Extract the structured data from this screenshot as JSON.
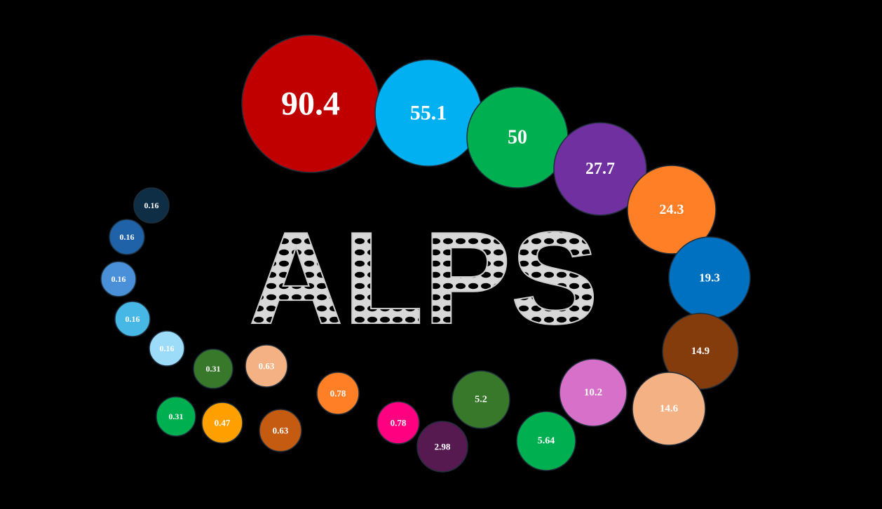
{
  "chart_data": {
    "type": "bubble",
    "title": "ALPS",
    "background": "#000000",
    "series": [
      {
        "label": "90.4",
        "value": 90.4,
        "color": "#C00000"
      },
      {
        "label": "55.1",
        "value": 55.1,
        "color": "#00B0F0"
      },
      {
        "label": "50",
        "value": 50,
        "color": "#00B050"
      },
      {
        "label": "27.7",
        "value": 27.7,
        "color": "#7030A0"
      },
      {
        "label": "24.3",
        "value": 24.3,
        "color": "#FF7F27"
      },
      {
        "label": "19.3",
        "value": 19.3,
        "color": "#0070C0"
      },
      {
        "label": "14.9",
        "value": 14.9,
        "color": "#843C0C"
      },
      {
        "label": "14.6",
        "value": 14.6,
        "color": "#F4B183"
      },
      {
        "label": "10.2",
        "value": 10.2,
        "color": "#D670C8"
      },
      {
        "label": "5.64",
        "value": 5.64,
        "color": "#00B050"
      },
      {
        "label": "5.2",
        "value": 5.2,
        "color": "#38782A"
      },
      {
        "label": "2.98",
        "value": 2.98,
        "color": "#561A50"
      },
      {
        "label": "0.78",
        "value": 0.78,
        "color": "#FF0080"
      },
      {
        "label": "0.78",
        "value": 0.78,
        "color": "#FF7F27"
      },
      {
        "label": "0.63",
        "value": 0.63,
        "color": "#C55A11"
      },
      {
        "label": "0.63",
        "value": 0.63,
        "color": "#F4B183"
      },
      {
        "label": "0.47",
        "value": 0.47,
        "color": "#FFA000"
      },
      {
        "label": "0.31",
        "value": 0.31,
        "color": "#00B050"
      },
      {
        "label": "0.31",
        "value": 0.31,
        "color": "#38782A"
      },
      {
        "label": "0.16",
        "value": 0.16,
        "color": "#9DDCF9"
      },
      {
        "label": "0.16",
        "value": 0.16,
        "color": "#47B7E6"
      },
      {
        "label": "0.16",
        "value": 0.16,
        "color": "#4A90D9"
      },
      {
        "label": "0.16",
        "value": 0.16,
        "color": "#1F62A8"
      },
      {
        "label": "0.16",
        "value": 0.16,
        "color": "#0D2E44"
      }
    ]
  }
}
